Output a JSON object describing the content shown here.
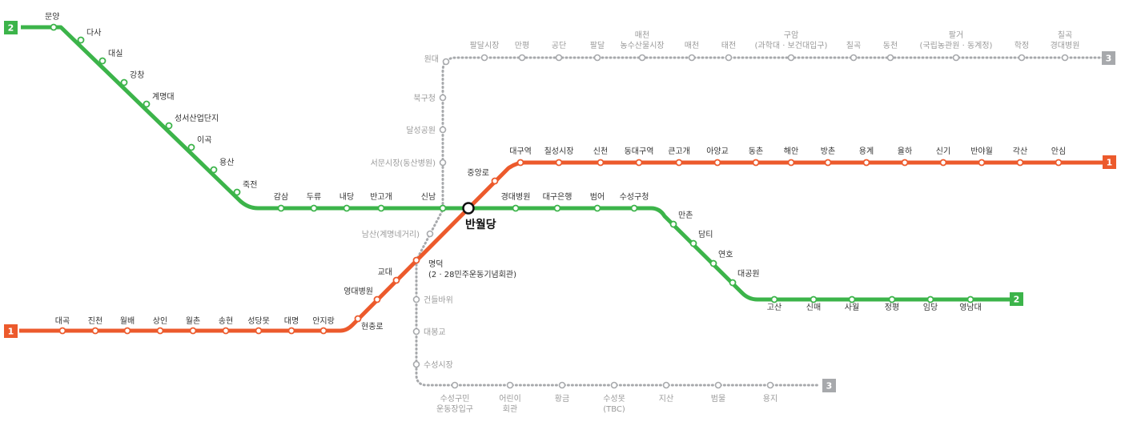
{
  "colors": {
    "line1": "#ec5a2c",
    "line2": "#3cb44a",
    "line3": "#a7a9ac"
  },
  "lines": {
    "line1": {
      "badge": "1"
    },
    "line2": {
      "badge": "2"
    },
    "line3": {
      "badge": "3"
    }
  },
  "hub": {
    "name": "반월당"
  },
  "stations": {
    "daegok": "대곡",
    "jincheon": "진천",
    "wolbae": "월배",
    "sangin": "상인",
    "wolchon": "월촌",
    "songhyeon": "송현",
    "seongdangmot": "성당못",
    "daemyeong": "대명",
    "anjirang": "안지랑",
    "hyeonchungno": "현충로",
    "yeongdaebyeongwon": "영대병원",
    "kyodae": "교대",
    "myeongdeok_1": "명덕",
    "myeongdeok_2": "(2 · 28민주운동기념회관)",
    "jungangno": "중앙로",
    "daegu": "대구역",
    "chilseong": "칠성시장",
    "sincheon": "신천",
    "dongdaegu": "동대구역",
    "keungogae": "큰고개",
    "ayanggyo": "아양교",
    "dongchon": "동촌",
    "haean": "해안",
    "bangchon": "방촌",
    "yonggye": "용계",
    "yulha": "율하",
    "singi": "신기",
    "banyawol": "반야월",
    "gaksan": "각산",
    "ansim": "안심",
    "munyang": "문양",
    "dasa": "다사",
    "daesil": "대실",
    "gangchang": "강창",
    "keimyung": "계명대",
    "seongseo": "성서산업단지",
    "igok": "이곡",
    "yongsan": "용산",
    "jukjeon": "죽전",
    "gamsam": "감삼",
    "duryu": "두류",
    "naedang": "내당",
    "bangogae": "반고개",
    "sinnam": "신남",
    "gyeongdae": "경대병원",
    "daegubank": "대구은행",
    "beomeo": "범어",
    "suseonggucheong": "수성구청",
    "manchon": "만촌",
    "damti": "담티",
    "yeonho": "연호",
    "daegongwon": "대공원",
    "gosan": "고산",
    "sinmae": "신매",
    "sawol": "사월",
    "jeongpyeong": "정평",
    "imdang": "임당",
    "yeungnam": "영남대",
    "chilgok_1": "칠곡",
    "chilgok_2": "경대병원",
    "hakjeong": "학정",
    "palgeo_1": "팔거",
    "palgeo_2": "(국립농관원 · 동계정)",
    "dongcheon": "동천",
    "chilgok3": "칠곡",
    "guam_1": "구암",
    "guam_2": "(과학대 · 보건대입구)",
    "taejeon": "태전",
    "maecheon": "매천",
    "maecheonmarket_1": "매천",
    "maecheonmarket_2": "농수산물시장",
    "paldal": "팔달",
    "gongdan": "공단",
    "manpyeong": "만평",
    "paldalmarket": "팔달시장",
    "wondae": "원대",
    "bukgu": "북구청",
    "dalseong": "달성공원",
    "seomun": "서문시장(동산병원)",
    "namsan": "남산(계명네거리)",
    "geonduri": "건들바위",
    "daebong": "대봉교",
    "suseongmarket": "수성시장",
    "suseongsports_1": "수성구민",
    "suseongsports_2": "운동장입구",
    "children_1": "어린이",
    "children_2": "회관",
    "hwanggeum": "황금",
    "suseongmot_1": "수성못",
    "suseongmot_2": "(TBC)",
    "jisan": "지산",
    "beommul": "범물",
    "yongji": "용지"
  }
}
